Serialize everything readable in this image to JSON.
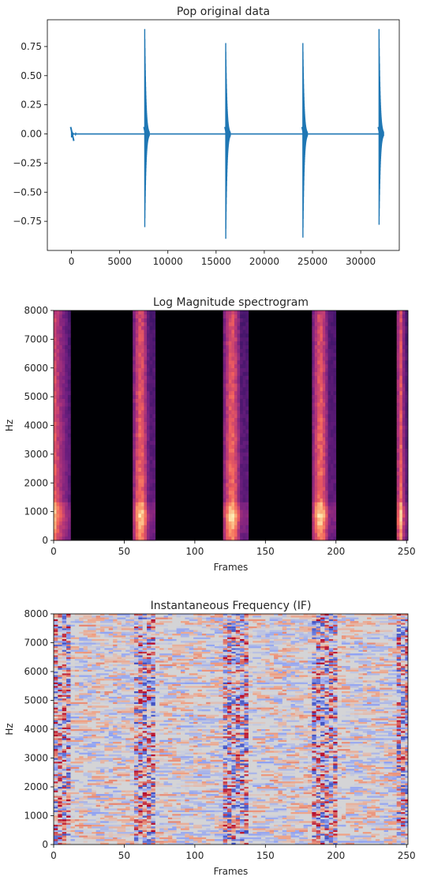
{
  "chart_data": [
    {
      "type": "line",
      "title": "Pop original data",
      "xlabel": "",
      "ylabel": "",
      "xlim": [
        -2500,
        34000
      ],
      "ylim": [
        -1.0,
        0.98
      ],
      "x_ticks": [
        "0",
        "5000",
        "10000",
        "15000",
        "20000",
        "25000",
        "30000"
      ],
      "x_tick_values": [
        0,
        5000,
        10000,
        15000,
        20000,
        25000,
        30000
      ],
      "y_ticks": [
        "0.75",
        "0.50",
        "0.25",
        "0.00",
        "−0.25",
        "−0.50",
        "−0.75"
      ],
      "y_tick_values": [
        0.75,
        0.5,
        0.25,
        0.0,
        -0.25,
        -0.5,
        -0.75
      ],
      "series": [
        {
          "color": "#1f77b4",
          "baseline": 0.0,
          "bursts": [
            {
              "x": 0,
              "max": 0.03,
              "min": -0.03
            },
            {
              "x": 7600,
              "max": 0.9,
              "min": -0.8
            },
            {
              "x": 16000,
              "max": 0.78,
              "min": -0.9
            },
            {
              "x": 24000,
              "max": 0.78,
              "min": -0.89
            },
            {
              "x": 31900,
              "max": 0.9,
              "min": -0.78
            }
          ]
        }
      ],
      "grid": false
    },
    {
      "type": "heatmap",
      "title": "Log Magnitude spectrogram",
      "xlabel": "Frames",
      "ylabel": "Hz",
      "xlim": [
        0,
        251
      ],
      "ylim": [
        0,
        8000
      ],
      "x_ticks": [
        "0",
        "50",
        "100",
        "150",
        "200",
        "250"
      ],
      "x_tick_values": [
        0,
        50,
        100,
        150,
        200,
        250
      ],
      "y_ticks": [
        "0",
        "1000",
        "2000",
        "3000",
        "4000",
        "5000",
        "6000",
        "7000",
        "8000"
      ],
      "y_tick_values": [
        0,
        1000,
        2000,
        3000,
        4000,
        5000,
        6000,
        7000,
        8000
      ],
      "colormap": "magma",
      "background_color": "#000004",
      "active_bands": [
        [
          0,
          12
        ],
        [
          56,
          72
        ],
        [
          120,
          138
        ],
        [
          183,
          200
        ],
        [
          243,
          251
        ]
      ]
    },
    {
      "type": "heatmap",
      "title": "Instantaneous Frequency (IF)",
      "xlabel": "Frames",
      "ylabel": "Hz",
      "xlim": [
        0,
        251
      ],
      "ylim": [
        0,
        8000
      ],
      "x_ticks": [
        "0",
        "50",
        "100",
        "150",
        "200",
        "250"
      ],
      "x_tick_values": [
        0,
        50,
        100,
        150,
        200,
        250
      ],
      "y_ticks": [
        "0",
        "1000",
        "2000",
        "3000",
        "4000",
        "5000",
        "6000",
        "7000",
        "8000"
      ],
      "y_tick_values": [
        0,
        1000,
        2000,
        3000,
        4000,
        5000,
        6000,
        7000,
        8000
      ],
      "colormap": "coolwarm",
      "background_color": "#d4d4d6",
      "active_bands": [
        [
          0,
          12
        ],
        [
          56,
          72
        ],
        [
          120,
          138
        ],
        [
          183,
          200
        ],
        [
          243,
          251
        ]
      ]
    }
  ]
}
